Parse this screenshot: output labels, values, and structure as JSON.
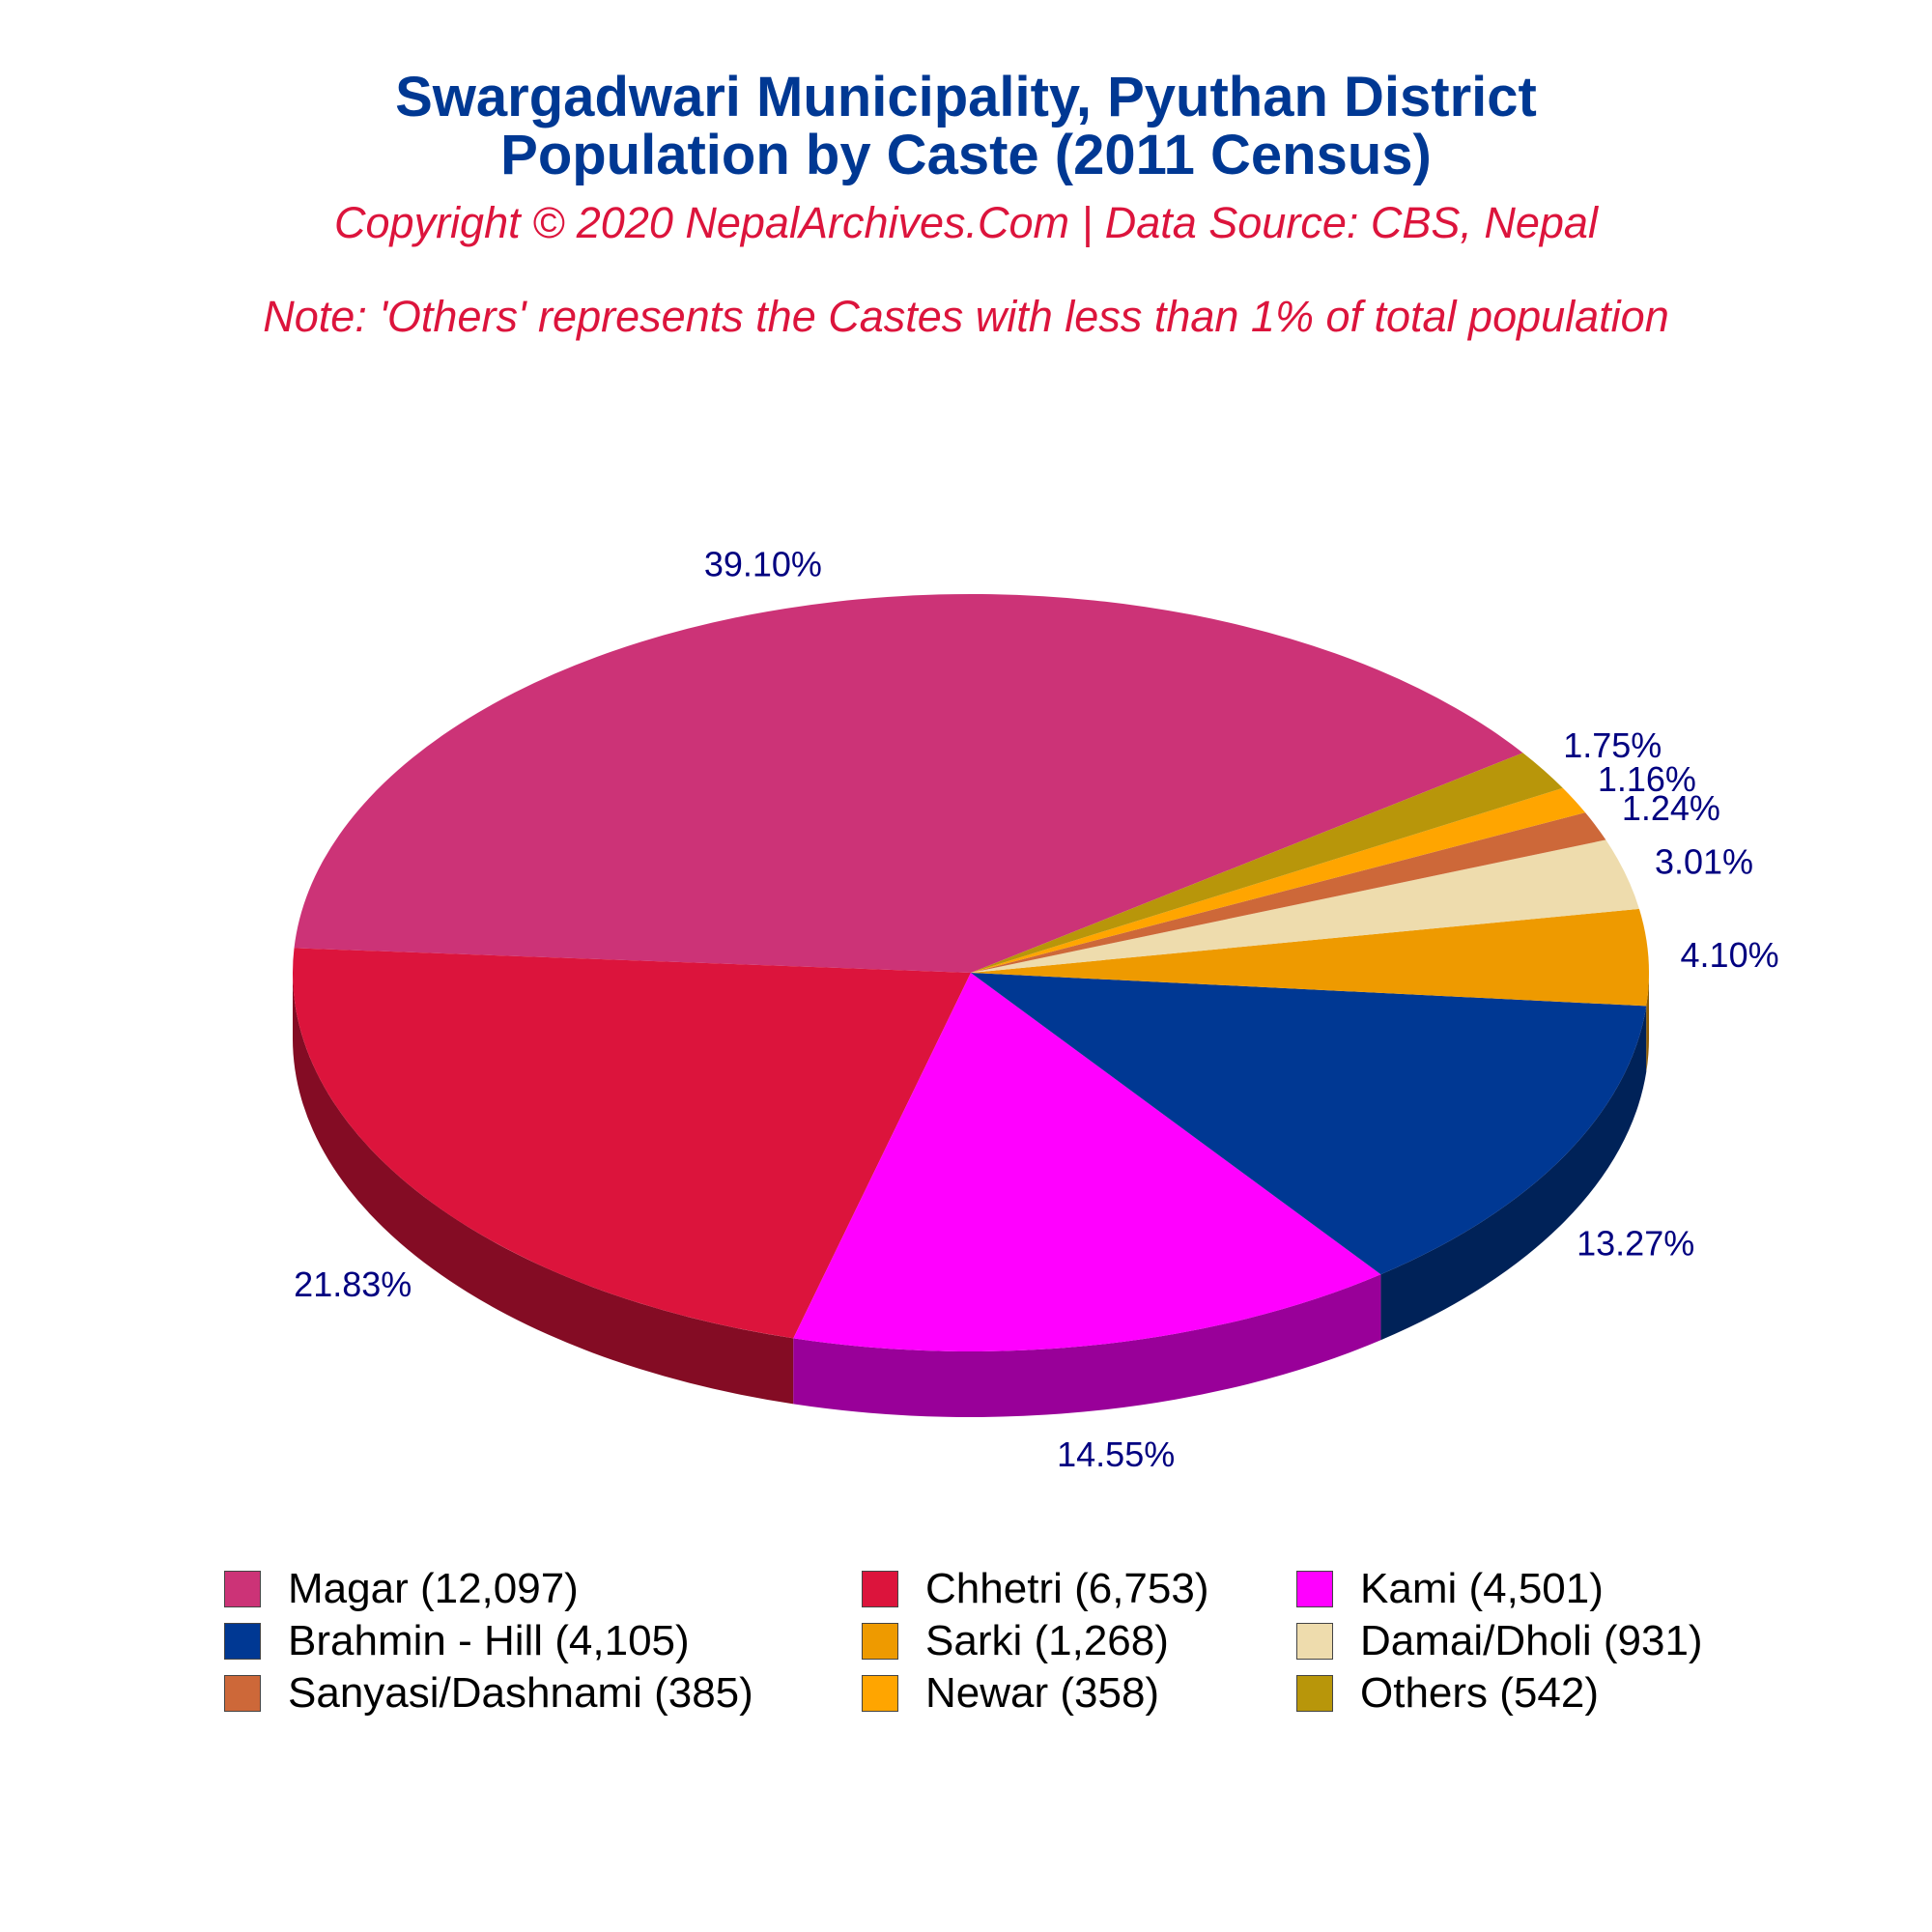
{
  "header": {
    "title_line1": "Swargadwari Municipality, Pyuthan District",
    "title_line2": "Population by Caste (2011 Census)",
    "copyright": "Copyright © 2020 NepalArchives.Com | Data Source: CBS, Nepal",
    "note": "Note: 'Others' represents the Castes with less than 1% of total population"
  },
  "chart_data": {
    "type": "pie",
    "style": "3d",
    "title": "Swargadwari Municipality, Pyuthan District Population by Caste (2011 Census)",
    "legend_position": "bottom",
    "slices": [
      {
        "label": "Magar (12,097)",
        "category": "Magar",
        "value": 12097,
        "percent_label": "39.10%",
        "color": "#cc3377"
      },
      {
        "label": "Chhetri (6,753)",
        "category": "Chhetri",
        "value": 6753,
        "percent_label": "21.83%",
        "color": "#dc143c"
      },
      {
        "label": "Kami (4,501)",
        "category": "Kami",
        "value": 4501,
        "percent_label": "14.55%",
        "color": "#ff00ff"
      },
      {
        "label": "Brahmin - Hill (4,105)",
        "category": "Brahmin - Hill",
        "value": 4105,
        "percent_label": "13.27%",
        "color": "#003893"
      },
      {
        "label": "Sarki (1,268)",
        "category": "Sarki",
        "value": 1268,
        "percent_label": "4.10%",
        "color": "#ee9a00"
      },
      {
        "label": "Damai/Dholi (931)",
        "category": "Damai/Dholi",
        "value": 931,
        "percent_label": "3.01%",
        "color": "#eedcad"
      },
      {
        "label": "Sanyasi/Dashnami (385)",
        "category": "Sanyasi/Dashnami",
        "value": 385,
        "percent_label": "1.24%",
        "color": "#cd6839"
      },
      {
        "label": "Newar (358)",
        "category": "Newar",
        "value": 358,
        "percent_label": "1.16%",
        "color": "#ffa500"
      },
      {
        "label": "Others (542)",
        "category": "Others",
        "value": 542,
        "percent_label": "1.75%",
        "color": "#b8960a"
      }
    ],
    "percent_label_color": "#000080"
  }
}
